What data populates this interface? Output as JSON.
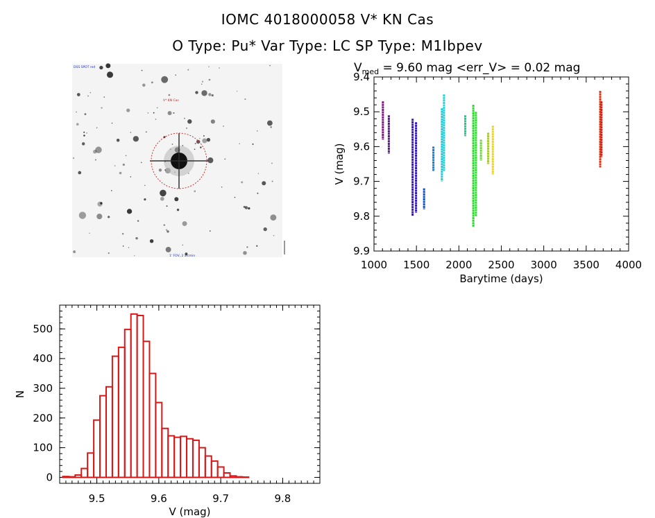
{
  "header": {
    "line1": "IOMC 4018000058   V* KN Cas",
    "line2": "O Type: Pu*  Var Type: LC  SP Type: M1Ibpev"
  },
  "image_panel": {
    "top_left_label": "DSS SPOT red",
    "target_label": "V* KN Cas",
    "bottom_label": "1' FOV, 2 arcmin",
    "background_color": "#f4f4f4",
    "circle_color": "#d81818",
    "star_color": "#202020"
  },
  "chart_data": [
    {
      "type": "scatter",
      "title_prefix": "V",
      "title_sub": "med",
      "title_rest": " = 9.60 mag <err_V> = 0.02 mag",
      "xlabel": "Barytime (days)",
      "ylabel": "V (mag)",
      "xlim": [
        1000,
        4000
      ],
      "ylim": [
        9.9,
        9.4
      ],
      "xticks": [
        1000,
        1500,
        2000,
        2500,
        3000,
        3500,
        4000
      ],
      "yticks": [
        9.4,
        9.5,
        9.6,
        9.7,
        9.8,
        9.9
      ],
      "ytick_labels": [
        "9.4",
        "9.5",
        "9.6",
        "9.7",
        "9.8",
        "9.9"
      ],
      "segments": [
        {
          "x": 1105,
          "y0": 9.47,
          "y1": 9.58,
          "color": "#7a1a7a"
        },
        {
          "x": 1175,
          "y0": 9.51,
          "y1": 9.62,
          "color": "#5a1a8a"
        },
        {
          "x": 1455,
          "y0": 9.52,
          "y1": 9.8,
          "color": "#3a10b8"
        },
        {
          "x": 1495,
          "y0": 9.53,
          "y1": 9.79,
          "color": "#3018c8"
        },
        {
          "x": 1590,
          "y0": 9.72,
          "y1": 9.78,
          "color": "#1050c8"
        },
        {
          "x": 1700,
          "y0": 9.6,
          "y1": 9.67,
          "color": "#1080d0"
        },
        {
          "x": 1800,
          "y0": 9.49,
          "y1": 9.7,
          "color": "#20c8d8"
        },
        {
          "x": 1825,
          "y0": 9.45,
          "y1": 9.67,
          "color": "#28d0d8"
        },
        {
          "x": 2075,
          "y0": 9.51,
          "y1": 9.57,
          "color": "#20c890"
        },
        {
          "x": 2170,
          "y0": 9.48,
          "y1": 9.83,
          "color": "#20e020"
        },
        {
          "x": 2200,
          "y0": 9.5,
          "y1": 9.8,
          "color": "#30e030"
        },
        {
          "x": 2260,
          "y0": 9.58,
          "y1": 9.64,
          "color": "#70d840"
        },
        {
          "x": 2345,
          "y0": 9.56,
          "y1": 9.65,
          "color": "#a8c830"
        },
        {
          "x": 2400,
          "y0": 9.54,
          "y1": 9.68,
          "color": "#f0d800"
        },
        {
          "x": 3665,
          "y0": 9.44,
          "y1": 9.66,
          "color": "#e03010"
        },
        {
          "x": 3680,
          "y0": 9.47,
          "y1": 9.63,
          "color": "#d02010"
        }
      ]
    },
    {
      "type": "bar",
      "xlabel": "V (mag)",
      "ylabel": "N",
      "xlim": [
        9.44,
        9.86
      ],
      "ylim": [
        -20,
        580
      ],
      "xticks": [
        9.5,
        9.6,
        9.7,
        9.8
      ],
      "yticks": [
        0,
        100,
        200,
        300,
        400,
        500
      ],
      "bin_start": 9.445,
      "bin_width": 0.01,
      "values": [
        3,
        2,
        8,
        30,
        82,
        193,
        275,
        305,
        408,
        438,
        498,
        550,
        545,
        458,
        350,
        252,
        165,
        140,
        135,
        138,
        130,
        125,
        100,
        72,
        55,
        35,
        15,
        5,
        2,
        1
      ],
      "bar_color": "#d81818"
    }
  ]
}
